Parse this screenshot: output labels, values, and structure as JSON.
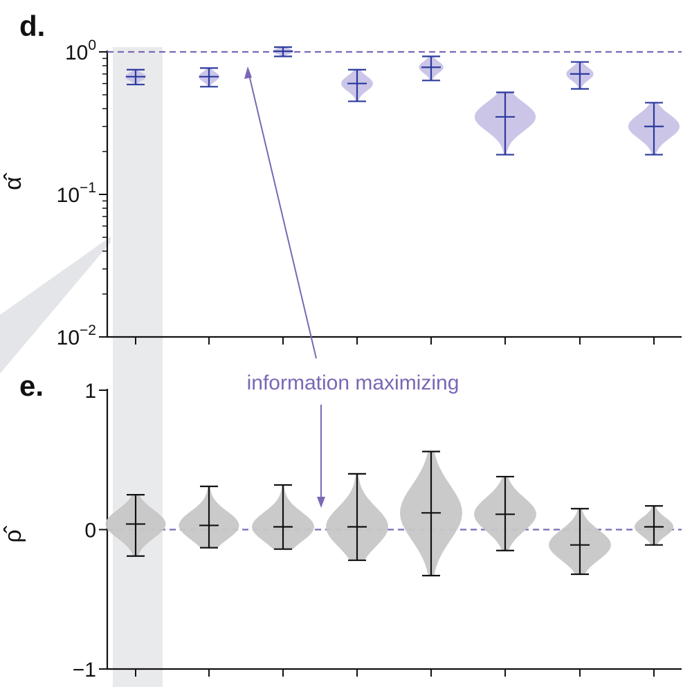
{
  "chart_data": [
    {
      "panel": "d.",
      "type": "violin",
      "ylabel": "α̂",
      "yscale": "log",
      "ylim": [
        0.01,
        1.0
      ],
      "yticks": [
        0.01,
        0.1,
        1
      ],
      "ytick_labels": [
        {
          "base": "10",
          "exp": "−2"
        },
        {
          "base": "10",
          "exp": "−1"
        },
        {
          "base": "10",
          "exp": "0"
        }
      ],
      "reference_line": 1.0,
      "grid": false,
      "color": "#2b3a9e",
      "fill": "#c9c2e6",
      "highlight_index": 0,
      "items": [
        {
          "median": 0.67,
          "min": 0.59,
          "max": 0.75
        },
        {
          "median": 0.67,
          "min": 0.57,
          "max": 0.77
        },
        {
          "median": 1.01,
          "min": 0.93,
          "max": 1.08
        },
        {
          "median": 0.6,
          "min": 0.45,
          "max": 0.75
        },
        {
          "median": 0.78,
          "min": 0.63,
          "max": 0.93
        },
        {
          "median": 0.35,
          "min": 0.19,
          "max": 0.52
        },
        {
          "median": 0.7,
          "min": 0.55,
          "max": 0.85
        },
        {
          "median": 0.3,
          "min": 0.19,
          "max": 0.44
        }
      ]
    },
    {
      "panel": "e.",
      "type": "violin",
      "ylabel": "ρ̂",
      "ylim": [
        -1,
        1
      ],
      "yticks": [
        -1,
        0,
        1
      ],
      "ytick_labels": [
        "−1",
        "0",
        "1"
      ],
      "reference_line": 0,
      "grid": false,
      "color": "#111111",
      "fill": "#c8c8c8",
      "highlight_index": 0,
      "items": [
        {
          "median": 0.04,
          "min": -0.19,
          "max": 0.25
        },
        {
          "median": 0.03,
          "min": -0.13,
          "max": 0.31
        },
        {
          "median": 0.02,
          "min": -0.14,
          "max": 0.32
        },
        {
          "median": 0.02,
          "min": -0.22,
          "max": 0.4
        },
        {
          "median": 0.12,
          "min": -0.33,
          "max": 0.56
        },
        {
          "median": 0.11,
          "min": -0.15,
          "max": 0.38
        },
        {
          "median": -0.11,
          "min": -0.32,
          "max": 0.15
        },
        {
          "median": 0.02,
          "min": -0.11,
          "max": 0.17
        }
      ]
    }
  ],
  "annotation": {
    "text": "information maximizing",
    "color": "#7a67b5"
  }
}
